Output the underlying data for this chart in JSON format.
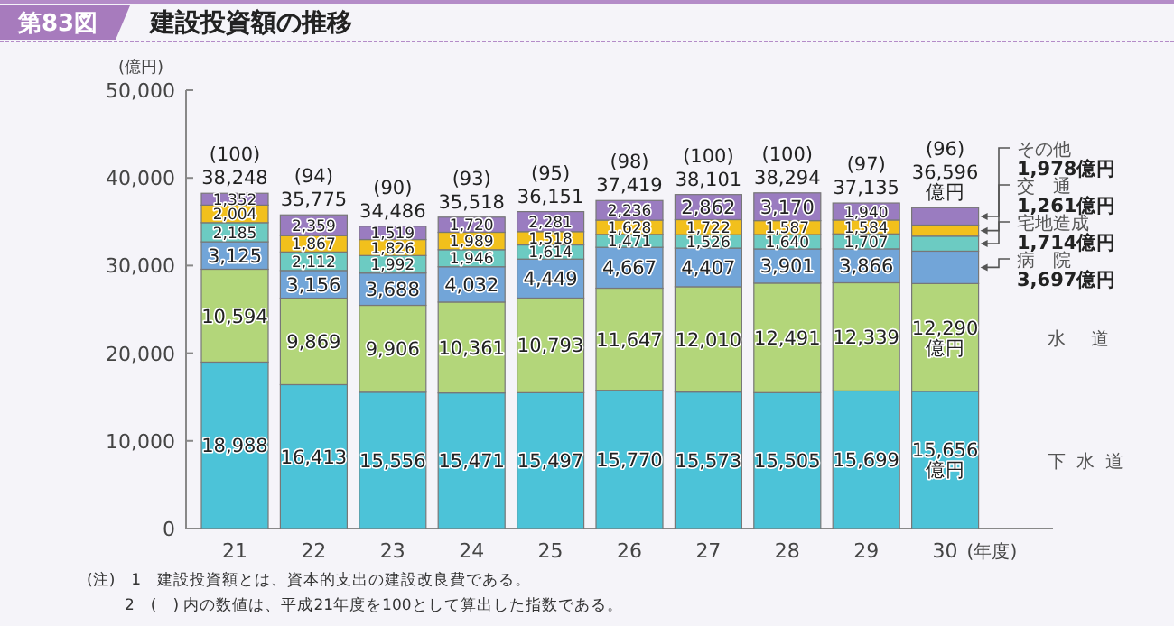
{
  "chart_data": {
    "type": "bar",
    "stacked": true,
    "title": "建設投資額の推移",
    "xlabel": "(年度)",
    "ylabel": "(億円)",
    "categories": [
      "21",
      "22",
      "23",
      "24",
      "25",
      "26",
      "27",
      "28",
      "29",
      "30"
    ],
    "series": [
      {
        "name": "下水道",
        "color": "#4cc3d8",
        "values": [
          18988,
          16413,
          15556,
          15471,
          15497,
          15770,
          15573,
          15505,
          15699,
          15656
        ],
        "value_labels": [
          "18,988",
          "16,413",
          "15,556",
          "15,471",
          "15,497",
          "15,770",
          "15,573",
          "15,505",
          "15,699",
          "15,656億円"
        ]
      },
      {
        "name": "水道",
        "color": "#b3d67a",
        "values": [
          10594,
          9869,
          9906,
          10361,
          10793,
          11647,
          12010,
          12491,
          12339,
          12290
        ],
        "value_labels": [
          "10,594",
          "9,869",
          "9,906",
          "10,361",
          "10,793",
          "11,647",
          "12,010",
          "12,491",
          "12,339",
          "12,290億円"
        ]
      },
      {
        "name": "病院",
        "color": "#72a5d8",
        "values": [
          3125,
          3156,
          3688,
          4032,
          4449,
          4667,
          4407,
          3901,
          3866,
          3697
        ],
        "value_labels": [
          "3,125",
          "3,156",
          "3,688",
          "4,032",
          "4,449",
          "4,667",
          "4,407",
          "3,901",
          "3,866",
          "3,697億円"
        ]
      },
      {
        "name": "宅地造成",
        "color": "#6ccbc2",
        "values": [
          2185,
          2112,
          1992,
          1946,
          1614,
          1471,
          1526,
          1640,
          1707,
          1714
        ],
        "value_labels": [
          "2,185",
          "2,112",
          "1,992",
          "1,946",
          "1,614",
          "1,471",
          "1,526",
          "1,640",
          "1,707",
          "1,714億円"
        ]
      },
      {
        "name": "交通",
        "color": "#f2c01c",
        "values": [
          2004,
          1867,
          1826,
          1989,
          1518,
          1628,
          1722,
          1587,
          1584,
          1261
        ],
        "value_labels": [
          "2,004",
          "1,867",
          "1,826",
          "1,989",
          "1,518",
          "1,628",
          "1,722",
          "1,587",
          "1,584",
          "1,261億円"
        ]
      },
      {
        "name": "その他",
        "color": "#9a7cc0",
        "values": [
          1352,
          2359,
          1519,
          1720,
          2281,
          2236,
          2862,
          3170,
          1940,
          1978
        ],
        "value_labels": [
          "1,352",
          "2,359",
          "1,519",
          "1,720",
          "2,281",
          "2,236",
          "2,862",
          "3,170",
          "1,940",
          "1,978億円"
        ]
      }
    ],
    "totals": [
      "38,248",
      "35,775",
      "34,486",
      "35,518",
      "36,151",
      "37,419",
      "38,101",
      "38,294",
      "37,135",
      "36,596億円"
    ],
    "ylim": [
      0,
      50000
    ],
    "yticks": [
      {
        "value": 0,
        "label": "0"
      },
      {
        "value": 10000,
        "label": "10,000"
      },
      {
        "value": 20000,
        "label": "20,000"
      },
      {
        "value": 30000,
        "label": "30,000"
      },
      {
        "value": 40000,
        "label": "40,000"
      },
      {
        "value": 50000,
        "label": "50,000"
      }
    ],
    "legend": "right",
    "annotations": [
      "第83図",
      {
        "text": "(100)",
        "x": "21",
        "y": 38248
      },
      {
        "text": "(94)",
        "x": "22",
        "y": 35775
      },
      {
        "text": "(90)",
        "x": "23",
        "y": 34486
      },
      {
        "text": "(93)",
        "x": "24",
        "y": 35518
      },
      {
        "text": "(95)",
        "x": "25",
        "y": 36151
      },
      {
        "text": "(98)",
        "x": "26",
        "y": 37419
      },
      {
        "text": "(100)",
        "x": "27",
        "y": 38101
      },
      {
        "text": "(100)",
        "x": "28",
        "y": 38294
      },
      {
        "text": "(97)",
        "x": "29",
        "y": 37135
      },
      {
        "text": "(96)",
        "x": "30",
        "y": 36596
      },
      "(注)　1　建設投資額とは、資本的支出の建設改良費である。",
      "2　(　) 内の数値は、平成21年度を100として算出した指数である。"
    ]
  }
}
